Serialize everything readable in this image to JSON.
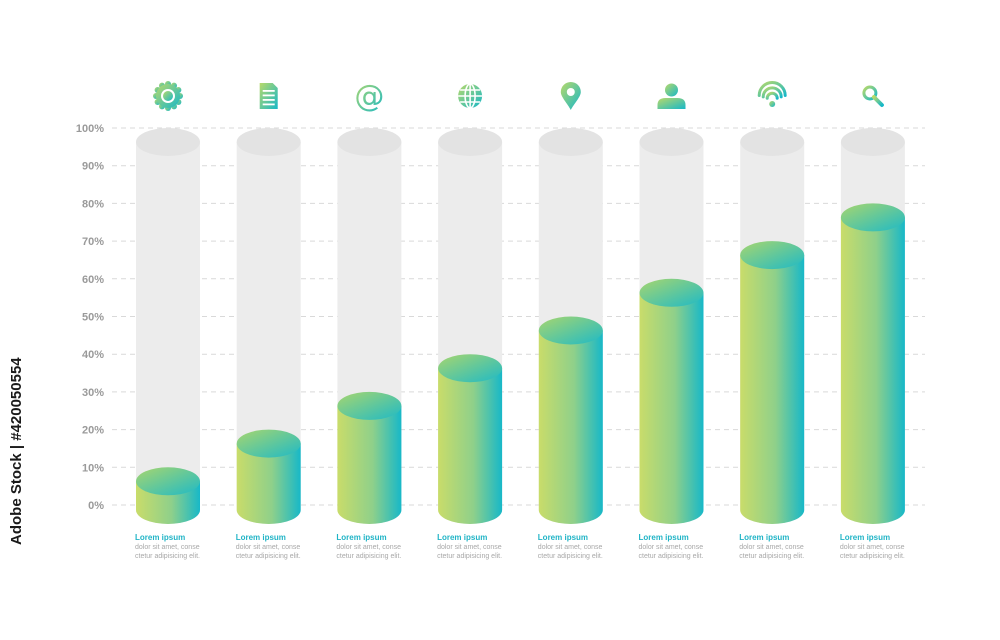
{
  "chart_data": {
    "type": "bar",
    "style": "3d-cylinder",
    "categories": [
      "gear",
      "document",
      "at",
      "globe",
      "location",
      "user",
      "wifi",
      "search"
    ],
    "values": [
      10,
      20,
      30,
      40,
      50,
      60,
      70,
      80
    ],
    "ylim": [
      0,
      100
    ],
    "y_ticks": [
      "0%",
      "10%",
      "20%",
      "30%",
      "40%",
      "50%",
      "60%",
      "70%",
      "80%",
      "90%",
      "100%"
    ],
    "grid": true,
    "title": "",
    "xlabel": "",
    "ylabel": ""
  },
  "icons": [
    "gear-icon",
    "document-icon",
    "at-sign-icon",
    "globe-icon",
    "location-pin-icon",
    "user-icon",
    "wifi-icon",
    "search-icon"
  ],
  "captions": [
    {
      "title": "Lorem ipsum",
      "line1": "dolor sit amet, conse",
      "line2": "ctetur adipisicing elit."
    },
    {
      "title": "Lorem ipsum",
      "line1": "dolor sit amet, conse",
      "line2": "ctetur adipisicing elit."
    },
    {
      "title": "Lorem ipsum",
      "line1": "dolor sit amet, conse",
      "line2": "ctetur adipisicing elit."
    },
    {
      "title": "Lorem ipsum",
      "line1": "dolor sit amet, conse",
      "line2": "ctetur adipisicing elit."
    },
    {
      "title": "Lorem ipsum",
      "line1": "dolor sit amet, conse",
      "line2": "ctetur adipisicing elit."
    },
    {
      "title": "Lorem ipsum",
      "line1": "dolor sit amet, conse",
      "line2": "ctetur adipisicing elit."
    },
    {
      "title": "Lorem ipsum",
      "line1": "dolor sit amet, conse",
      "line2": "ctetur adipisicing elit."
    },
    {
      "title": "Lorem ipsum",
      "line1": "dolor sit amet, conse",
      "line2": "ctetur adipisicing elit."
    }
  ],
  "watermark": "Adobe Stock | #420050554",
  "colors": {
    "gradient_start": "#c9dc6a",
    "gradient_end": "#17b8c8",
    "track": "#ececec",
    "track_top": "#e3e3e3",
    "grid": "#d9d9d9",
    "tick_text": "#9a9a9a",
    "caption_title": "#20b4c6",
    "caption_body": "#a8a8a8"
  }
}
